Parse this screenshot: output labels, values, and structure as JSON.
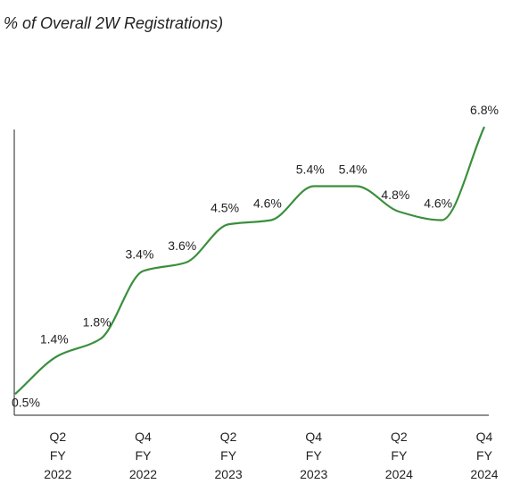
{
  "chart_data": {
    "type": "line",
    "title": "% of Overall 2W Registrations)",
    "categories": [
      null,
      [
        "Q2",
        "FY",
        "2022"
      ],
      null,
      [
        "Q4",
        "FY",
        "2022"
      ],
      null,
      [
        "Q2",
        "FY",
        "2023"
      ],
      null,
      [
        "Q4",
        "FY",
        "2023"
      ],
      null,
      [
        "Q2",
        "FY",
        "2024"
      ],
      null,
      [
        "Q4",
        "FY",
        "2024"
      ]
    ],
    "series": [
      {
        "name": null,
        "color": "#3a8f3c",
        "values": [
          0.5,
          1.4,
          1.8,
          3.4,
          3.6,
          4.5,
          4.6,
          5.4,
          5.4,
          4.8,
          4.6,
          6.8
        ],
        "value_labels": [
          "0.5%",
          "1.4%",
          "1.8%",
          "3.4%",
          "3.6%",
          "4.5%",
          "4.6%",
          "5.4%",
          "5.4%",
          "4.8%",
          "4.6%",
          "6.8%"
        ]
      }
    ],
    "ylim": [
      0,
      6.8
    ]
  }
}
